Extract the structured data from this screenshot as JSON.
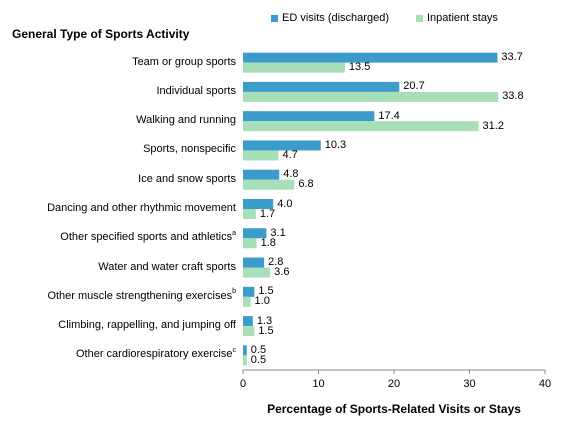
{
  "chart_data": {
    "type": "bar",
    "orientation": "horizontal",
    "row_header": "General Type of Sports Activity",
    "xlabel": "Percentage of Sports-Related Visits  or Stays",
    "xlim": [
      0,
      40
    ],
    "xticks": [
      "0",
      "10",
      "20",
      "30",
      "40"
    ],
    "legend_position": "top",
    "categories": [
      {
        "label": "Team or group sports",
        "sup": ""
      },
      {
        "label": "Individual sports",
        "sup": ""
      },
      {
        "label": "Walking and running",
        "sup": ""
      },
      {
        "label": "Sports, nonspecific",
        "sup": ""
      },
      {
        "label": "Ice and snow sports",
        "sup": ""
      },
      {
        "label": "Dancing and other rhythmic movement",
        "sup": ""
      },
      {
        "label": "Other specified sports and athletics",
        "sup": "a"
      },
      {
        "label": "Water and water craft sports",
        "sup": ""
      },
      {
        "label": "Other muscle strengthening exercises",
        "sup": "b"
      },
      {
        "label": "Climbing, rappelling, and jumping off",
        "sup": ""
      },
      {
        "label": "Other cardiorespiratory exercise",
        "sup": "c"
      }
    ],
    "series": [
      {
        "name": "ED visits (discharged)",
        "color": "#3B9BCB",
        "values": [
          33.7,
          20.7,
          17.4,
          10.3,
          4.8,
          4.0,
          3.1,
          2.8,
          1.5,
          1.3,
          0.5
        ],
        "labels": [
          "33.7",
          "20.7",
          "17.4",
          "10.3",
          "4.8",
          "4.0",
          "3.1",
          "2.8",
          "1.5",
          "1.3",
          "0.5"
        ]
      },
      {
        "name": "Inpatient stays",
        "color": "#A8DFB8",
        "values": [
          13.5,
          33.8,
          31.2,
          4.7,
          6.8,
          1.7,
          1.8,
          3.6,
          1.0,
          1.5,
          0.5
        ],
        "labels": [
          "13.5",
          "33.8",
          "31.2",
          "4.7",
          "6.8",
          "1.7",
          "1.8",
          "3.6",
          "1.0",
          "1.5",
          "0.5"
        ]
      }
    ]
  }
}
